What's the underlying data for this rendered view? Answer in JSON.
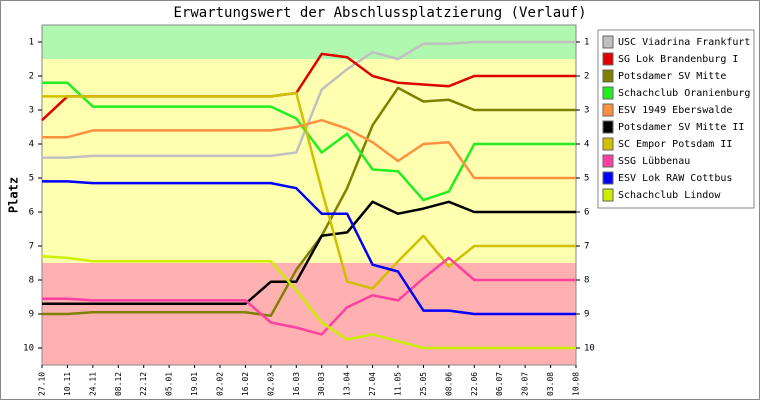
{
  "chart_data": {
    "type": "line",
    "title": "Erwartungswert der Abschlussplatzierung (Verlauf)",
    "y_label": "Platz",
    "categories": [
      "27.10",
      "10.11",
      "24.11",
      "08.12",
      "22.12",
      "05.01",
      "19.01",
      "02.02",
      "16.02",
      "02.03",
      "16.03",
      "30.03",
      "13.04",
      "27.04",
      "11.05",
      "25.05",
      "08.06",
      "22.06",
      "06.07",
      "20.07",
      "03.08",
      "10.08"
    ],
    "ylim": [
      0.5,
      10.5
    ],
    "y_inverted": true,
    "yticks": [
      1,
      2,
      3,
      4,
      5,
      6,
      7,
      8,
      9,
      10
    ],
    "bands": [
      {
        "from": 0.5,
        "to": 1.5,
        "color": "#b0f8b0"
      },
      {
        "from": 1.5,
        "to": 7.5,
        "color": "#ffffb0"
      },
      {
        "from": 7.5,
        "to": 10.5,
        "color": "#ffb0b0"
      }
    ],
    "legend": "right",
    "series": [
      {
        "name": "USC Viadrina Frankfurt",
        "color": "#c0c0c0",
        "values": [
          4.4,
          4.4,
          4.35,
          4.35,
          4.35,
          4.35,
          4.35,
          4.35,
          4.35,
          4.35,
          4.25,
          2.4,
          1.8,
          1.3,
          1.5,
          1.05,
          1.05,
          1,
          1,
          1,
          1,
          1
        ]
      },
      {
        "name": "SG Lok Brandenburg I",
        "color": "#e00000",
        "values": [
          3.3,
          2.6,
          2.6,
          2.6,
          2.6,
          2.6,
          2.6,
          2.6,
          2.6,
          2.6,
          2.5,
          1.35,
          1.45,
          2.0,
          2.2,
          2.25,
          2.3,
          2.0,
          2.0,
          2.0,
          2.0,
          2.0
        ]
      },
      {
        "name": "Potsdamer SV Mitte",
        "color": "#808000",
        "values": [
          9.0,
          9.0,
          8.95,
          8.95,
          8.95,
          8.95,
          8.95,
          8.95,
          8.95,
          9.05,
          7.7,
          6.7,
          5.3,
          3.45,
          2.35,
          2.75,
          2.7,
          3.0,
          3.0,
          3.0,
          3.0,
          3.0
        ]
      },
      {
        "name": "Schachclub Oranienburg",
        "color": "#22ee22",
        "values": [
          2.2,
          2.2,
          2.9,
          2.9,
          2.9,
          2.9,
          2.9,
          2.9,
          2.9,
          2.9,
          3.25,
          4.25,
          3.7,
          4.75,
          4.8,
          5.65,
          5.4,
          4.0,
          4.0,
          4.0,
          4.0,
          4.0
        ]
      },
      {
        "name": "ESV 1949 Eberswalde",
        "color": "#ff9040",
        "values": [
          3.8,
          3.8,
          3.6,
          3.6,
          3.6,
          3.6,
          3.6,
          3.6,
          3.6,
          3.6,
          3.5,
          3.3,
          3.55,
          3.95,
          4.5,
          4.0,
          3.95,
          5.0,
          5.0,
          5.0,
          5.0,
          5.0
        ]
      },
      {
        "name": "Potsdamer SV Mitte II",
        "color": "#000000",
        "values": [
          8.7,
          8.7,
          8.7,
          8.7,
          8.7,
          8.7,
          8.7,
          8.7,
          8.7,
          8.05,
          8.05,
          6.7,
          6.6,
          5.7,
          6.05,
          5.9,
          5.7,
          6.0,
          6.0,
          6.0,
          6.0,
          6.0
        ]
      },
      {
        "name": "SC Empor Potsdam II",
        "color": "#d0c000",
        "values": [
          2.6,
          2.6,
          2.6,
          2.6,
          2.6,
          2.6,
          2.6,
          2.6,
          2.6,
          2.6,
          2.5,
          5.35,
          8.05,
          8.25,
          7.45,
          6.7,
          7.6,
          7.0,
          7.0,
          7.0,
          7.0,
          7.0
        ]
      },
      {
        "name": "SSG Lübbenau",
        "color": "#ff40a0",
        "values": [
          8.55,
          8.55,
          8.6,
          8.6,
          8.6,
          8.6,
          8.6,
          8.6,
          8.6,
          9.25,
          9.4,
          9.6,
          8.8,
          8.45,
          8.6,
          7.95,
          7.35,
          8.0,
          8.0,
          8.0,
          8.0,
          8.0
        ]
      },
      {
        "name": "ESV Lok RAW Cottbus",
        "color": "#0000ff",
        "values": [
          5.1,
          5.1,
          5.15,
          5.15,
          5.15,
          5.15,
          5.15,
          5.15,
          5.15,
          5.15,
          5.3,
          6.05,
          6.05,
          7.55,
          7.75,
          8.9,
          8.9,
          9.0,
          9.0,
          9.0,
          9.0,
          9.0
        ]
      },
      {
        "name": "Schachclub Lindow",
        "color": "#ccee00",
        "values": [
          7.3,
          7.35,
          7.45,
          7.45,
          7.45,
          7.45,
          7.45,
          7.45,
          7.45,
          7.45,
          8.3,
          9.25,
          9.75,
          9.6,
          9.8,
          10.0,
          10.0,
          10.0,
          10.0,
          10.0,
          10.0,
          10.0
        ]
      }
    ]
  }
}
